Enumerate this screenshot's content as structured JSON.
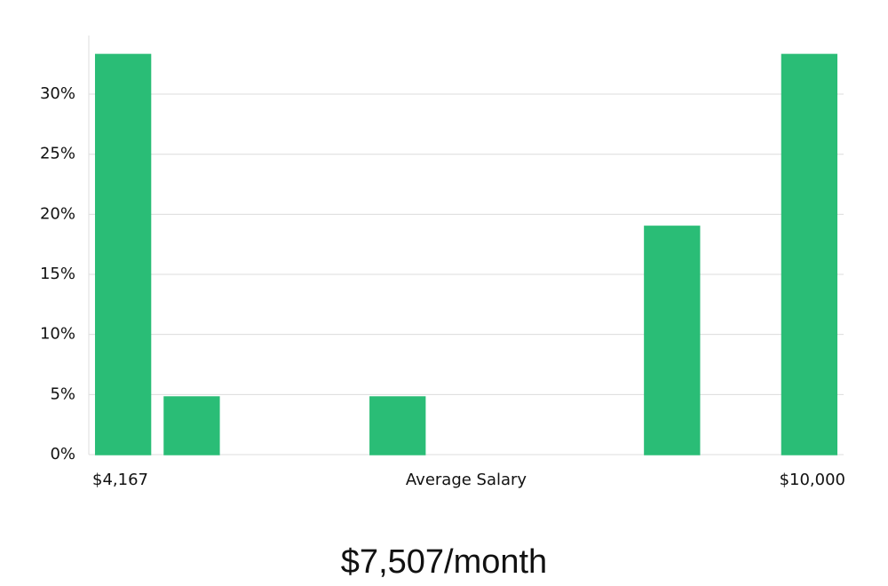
{
  "chart_data": {
    "type": "bar",
    "values": [
      33.3,
      4.8,
      0,
      0,
      4.8,
      0,
      0,
      0,
      19,
      0,
      33.3
    ],
    "color": "#2abd76",
    "highlight_index": 6,
    "highlight_color": "#1a1a2e",
    "ylim": [
      0,
      35
    ],
    "yticks": [
      {
        "value": 0,
        "label": "0%"
      },
      {
        "value": 5,
        "label": "5%"
      },
      {
        "value": 10,
        "label": "10%"
      },
      {
        "value": 15,
        "label": "15%"
      },
      {
        "value": 20,
        "label": "20%"
      },
      {
        "value": 25,
        "label": "25%"
      },
      {
        "value": 30,
        "label": "30%"
      }
    ],
    "grid": true,
    "x_min_label": "$4,167",
    "x_label": "Average Salary",
    "x_max_label": "$10,000",
    "subtitle": "$7,507/month"
  }
}
